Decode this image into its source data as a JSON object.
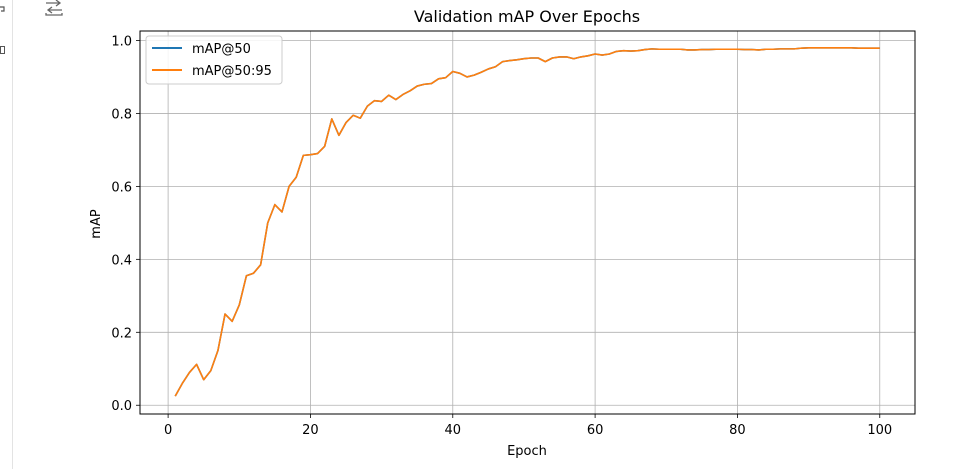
{
  "toolbar": {
    "icons": [
      "cell-output-toggle-icon",
      "cell-options-icon",
      "cell-gutter-marker-icon"
    ]
  },
  "chart_data": {
    "type": "line",
    "title": "Validation mAP Over Epochs",
    "xlabel": "Epoch",
    "ylabel": "mAP",
    "xlim": [
      -3.95,
      104.95
    ],
    "ylim": [
      -0.024,
      1.026
    ],
    "xticks": [
      0,
      20,
      40,
      60,
      80,
      100
    ],
    "yticks": [
      0.0,
      0.2,
      0.4,
      0.6,
      0.8,
      1.0
    ],
    "grid": true,
    "legend_loc": "upper left",
    "colors": {
      "mAP@50": "#1f77b4",
      "mAP@50:95": "#ff7f0e"
    },
    "x": [
      1,
      2,
      3,
      4,
      5,
      6,
      7,
      8,
      9,
      10,
      11,
      12,
      13,
      14,
      15,
      16,
      17,
      18,
      19,
      20,
      21,
      22,
      23,
      24,
      25,
      26,
      27,
      28,
      29,
      30,
      31,
      32,
      33,
      34,
      35,
      36,
      37,
      38,
      39,
      40,
      41,
      42,
      43,
      44,
      45,
      46,
      47,
      48,
      49,
      50,
      51,
      52,
      53,
      54,
      55,
      56,
      57,
      58,
      59,
      60,
      61,
      62,
      63,
      64,
      65,
      66,
      67,
      68,
      69,
      70,
      71,
      72,
      73,
      74,
      75,
      76,
      77,
      78,
      79,
      80,
      81,
      82,
      83,
      84,
      85,
      86,
      87,
      88,
      89,
      90,
      91,
      92,
      93,
      94,
      95,
      96,
      97,
      98,
      99,
      100
    ],
    "series": [
      {
        "name": "mAP@50",
        "values": [
          0.025,
          0.06,
          0.09,
          0.112,
          0.07,
          0.095,
          0.15,
          0.25,
          0.23,
          0.275,
          0.355,
          0.362,
          0.385,
          0.5,
          0.55,
          0.53,
          0.6,
          0.625,
          0.685,
          0.687,
          0.69,
          0.71,
          0.785,
          0.74,
          0.775,
          0.795,
          0.787,
          0.82,
          0.835,
          0.833,
          0.85,
          0.838,
          0.852,
          0.862,
          0.875,
          0.88,
          0.882,
          0.895,
          0.898,
          0.915,
          0.91,
          0.9,
          0.905,
          0.913,
          0.922,
          0.928,
          0.942,
          0.945,
          0.947,
          0.95,
          0.952,
          0.952,
          0.942,
          0.952,
          0.955,
          0.955,
          0.95,
          0.955,
          0.958,
          0.963,
          0.96,
          0.963,
          0.97,
          0.972,
          0.971,
          0.972,
          0.975,
          0.977,
          0.976,
          0.976,
          0.976,
          0.976,
          0.974,
          0.974,
          0.975,
          0.975,
          0.976,
          0.976,
          0.976,
          0.976,
          0.975,
          0.975,
          0.974,
          0.976,
          0.976,
          0.977,
          0.977,
          0.977,
          0.979,
          0.98,
          0.98,
          0.98,
          0.98,
          0.98,
          0.98,
          0.98,
          0.979,
          0.979,
          0.979,
          0.979
        ]
      },
      {
        "name": "mAP@50:95",
        "values": [
          0.025,
          0.06,
          0.09,
          0.112,
          0.07,
          0.095,
          0.15,
          0.25,
          0.23,
          0.275,
          0.355,
          0.362,
          0.385,
          0.5,
          0.55,
          0.53,
          0.6,
          0.625,
          0.685,
          0.687,
          0.69,
          0.71,
          0.785,
          0.74,
          0.775,
          0.795,
          0.787,
          0.82,
          0.835,
          0.833,
          0.85,
          0.838,
          0.852,
          0.862,
          0.875,
          0.88,
          0.882,
          0.895,
          0.898,
          0.915,
          0.91,
          0.9,
          0.905,
          0.913,
          0.922,
          0.928,
          0.942,
          0.945,
          0.947,
          0.95,
          0.952,
          0.952,
          0.942,
          0.952,
          0.955,
          0.955,
          0.95,
          0.955,
          0.958,
          0.963,
          0.96,
          0.963,
          0.97,
          0.972,
          0.971,
          0.972,
          0.975,
          0.977,
          0.976,
          0.976,
          0.976,
          0.976,
          0.974,
          0.974,
          0.975,
          0.975,
          0.976,
          0.976,
          0.976,
          0.976,
          0.975,
          0.975,
          0.974,
          0.976,
          0.976,
          0.977,
          0.977,
          0.977,
          0.979,
          0.98,
          0.98,
          0.98,
          0.98,
          0.98,
          0.98,
          0.98,
          0.979,
          0.979,
          0.979,
          0.979
        ]
      }
    ]
  }
}
